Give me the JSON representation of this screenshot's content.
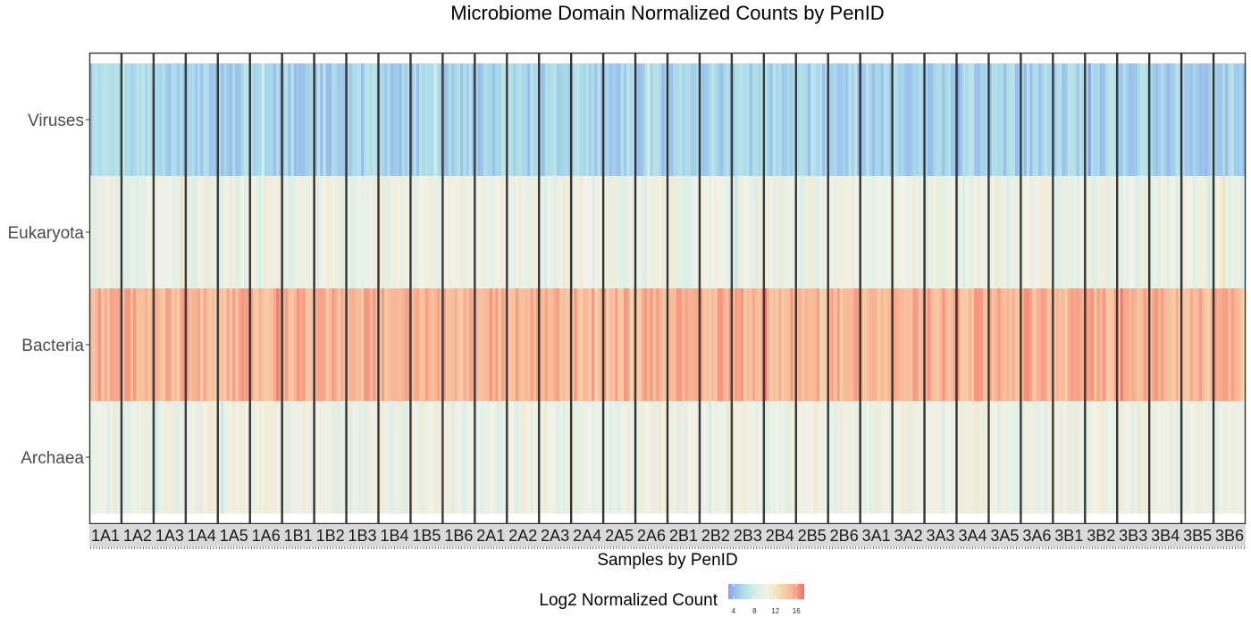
{
  "chart_data": {
    "type": "heatmap",
    "title": "Microbiome Domain Normalized Counts by PenID",
    "xlabel": "Samples by PenID",
    "ylabel": "",
    "rows": [
      "Viruses",
      "Eukaryota",
      "Bacteria",
      "Archaea"
    ],
    "facets": [
      "1A1",
      "1A2",
      "1A3",
      "1A4",
      "1A5",
      "1A6",
      "1B1",
      "1B2",
      "1B3",
      "1B4",
      "1B5",
      "1B6",
      "2A1",
      "2A2",
      "2A3",
      "2A4",
      "2A5",
      "2A6",
      "2B1",
      "2B2",
      "2B3",
      "2B4",
      "2B5",
      "2B6",
      "3A1",
      "3A2",
      "3A3",
      "3A4",
      "3A5",
      "3A6",
      "3B1",
      "3B2",
      "3B3",
      "3B4",
      "3B5",
      "3B6"
    ],
    "row_typical_log2": {
      "Viruses": 5.5,
      "Eukaryota": 10,
      "Bacteria": 15,
      "Archaea": 10
    },
    "color_scale": {
      "colors": [
        "#8c9eef",
        "#a6d8ea",
        "#cdeee6",
        "#f2f2e8",
        "#f3dfb3",
        "#f9b898",
        "#f66f66"
      ],
      "ticks": [
        4,
        8,
        12,
        16
      ],
      "min": 3,
      "max": 17.5
    },
    "legend": {
      "title": "Log2 Normalized Count",
      "position": "bottom"
    }
  }
}
